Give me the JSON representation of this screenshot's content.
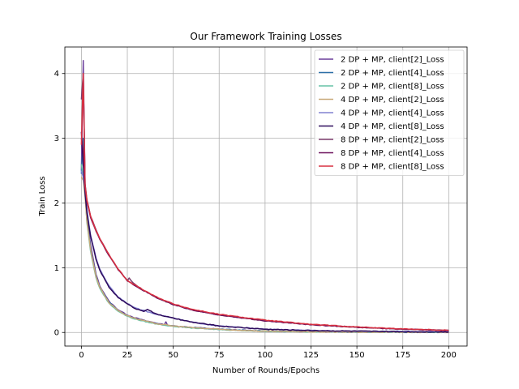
{
  "chart_data": {
    "type": "line",
    "title": "Our Framework Training Losses",
    "xlabel": "Number of Rounds/Epochs",
    "ylabel": "Train Loss",
    "xlim": [
      -9,
      210
    ],
    "ylim": [
      -0.21,
      4.41
    ],
    "xticks": [
      0,
      25,
      50,
      75,
      100,
      125,
      150,
      175,
      200
    ],
    "yticks": [
      0,
      1,
      2,
      3,
      4
    ],
    "grid": true,
    "legend_position": "top-right",
    "series": [
      {
        "name": "2 DP + MP, client[2]_Loss",
        "color": "#6a3d9a",
        "group": "fast",
        "x": [
          0,
          1,
          2,
          3,
          5,
          8,
          10,
          15,
          20,
          25,
          30,
          35,
          40,
          45,
          46,
          47,
          50,
          60,
          75,
          100,
          125,
          150,
          175,
          200
        ],
        "y": [
          2.5,
          4.2,
          2.3,
          1.8,
          1.35,
          0.9,
          0.72,
          0.48,
          0.35,
          0.27,
          0.22,
          0.18,
          0.15,
          0.12,
          0.16,
          0.11,
          0.1,
          0.08,
          0.05,
          0.02,
          0.01,
          0.005,
          0.004,
          0.003
        ]
      },
      {
        "name": "2 DP + MP, client[4]_Loss",
        "color": "#2c6fa8",
        "group": "fast",
        "x": [
          0,
          1,
          2,
          3,
          5,
          8,
          10,
          15,
          20,
          25,
          30,
          40,
          50,
          60,
          75,
          100,
          125,
          150,
          175,
          200
        ],
        "y": [
          2.45,
          3.0,
          2.2,
          1.75,
          1.3,
          0.87,
          0.7,
          0.47,
          0.34,
          0.26,
          0.21,
          0.14,
          0.1,
          0.075,
          0.05,
          0.02,
          0.01,
          0.006,
          0.004,
          0.003
        ]
      },
      {
        "name": "2 DP + MP, client[8]_Loss",
        "color": "#66c2a5",
        "group": "fast",
        "x": [
          0,
          1,
          2,
          3,
          5,
          8,
          10,
          15,
          20,
          25,
          30,
          40,
          50,
          60,
          75,
          100,
          125,
          150,
          175,
          200
        ],
        "y": [
          2.6,
          2.4,
          2.15,
          1.7,
          1.25,
          0.84,
          0.68,
          0.45,
          0.33,
          0.25,
          0.2,
          0.135,
          0.095,
          0.07,
          0.045,
          0.018,
          0.009,
          0.005,
          0.004,
          0.003
        ]
      },
      {
        "name": "4 DP + MP, client[2]_Loss",
        "color": "#c8a878",
        "group": "fast",
        "x": [
          0,
          1,
          2,
          3,
          5,
          8,
          10,
          15,
          20,
          25,
          30,
          40,
          50,
          60,
          75,
          100,
          125,
          150,
          175,
          200
        ],
        "y": [
          2.4,
          2.35,
          2.1,
          1.72,
          1.28,
          0.86,
          0.7,
          0.46,
          0.34,
          0.26,
          0.21,
          0.14,
          0.1,
          0.075,
          0.048,
          0.019,
          0.009,
          0.005,
          0.004,
          0.003
        ]
      },
      {
        "name": "4 DP + MP, client[4]_Loss",
        "color": "#8080d0",
        "group": "mid",
        "x": [
          0,
          1,
          2,
          3,
          5,
          8,
          10,
          15,
          20,
          25,
          30,
          35,
          40,
          50,
          60,
          75,
          100,
          125,
          150,
          175,
          200
        ],
        "y": [
          2.5,
          2.4,
          2.2,
          1.9,
          1.5,
          1.15,
          0.98,
          0.72,
          0.55,
          0.45,
          0.37,
          0.33,
          0.29,
          0.22,
          0.16,
          0.1,
          0.05,
          0.03,
          0.02,
          0.015,
          0.01
        ]
      },
      {
        "name": "4 DP + MP, client[8]_Loss",
        "color": "#2d0a5c",
        "group": "mid",
        "x": [
          0,
          1,
          2,
          3,
          5,
          8,
          10,
          15,
          20,
          25,
          30,
          34,
          36,
          40,
          50,
          60,
          75,
          100,
          125,
          150,
          175,
          200
        ],
        "y": [
          3.1,
          2.6,
          2.15,
          1.85,
          1.48,
          1.13,
          0.96,
          0.7,
          0.54,
          0.44,
          0.36,
          0.33,
          0.36,
          0.29,
          0.22,
          0.16,
          0.1,
          0.05,
          0.03,
          0.02,
          0.012,
          0.008
        ]
      },
      {
        "name": "8 DP + MP, client[2]_Loss",
        "color": "#7a3a6a",
        "group": "slow",
        "x": [
          0,
          1,
          2,
          3,
          5,
          8,
          10,
          15,
          20,
          25,
          26,
          27,
          30,
          40,
          50,
          60,
          75,
          100,
          125,
          150,
          175,
          200
        ],
        "y": [
          3.6,
          4.0,
          2.3,
          2.05,
          1.8,
          1.58,
          1.45,
          1.2,
          0.98,
          0.8,
          0.84,
          0.8,
          0.72,
          0.55,
          0.43,
          0.35,
          0.27,
          0.18,
          0.12,
          0.08,
          0.05,
          0.03
        ]
      },
      {
        "name": "8 DP + MP, client[4]_Loss",
        "color": "#6b0f5a",
        "group": "slow",
        "x": [
          0,
          1,
          2,
          3,
          5,
          8,
          10,
          15,
          20,
          25,
          30,
          40,
          50,
          60,
          75,
          100,
          125,
          150,
          175,
          200
        ],
        "y": [
          3.0,
          2.8,
          2.25,
          2.02,
          1.78,
          1.56,
          1.44,
          1.19,
          0.97,
          0.8,
          0.71,
          0.55,
          0.43,
          0.35,
          0.27,
          0.18,
          0.12,
          0.08,
          0.05,
          0.03
        ]
      },
      {
        "name": "8 DP + MP, client[8]_Loss",
        "color": "#d83040",
        "group": "slow",
        "x": [
          0,
          1,
          2,
          3,
          5,
          8,
          10,
          15,
          20,
          25,
          30,
          40,
          50,
          60,
          75,
          100,
          125,
          150,
          175,
          200
        ],
        "y": [
          2.9,
          4.0,
          2.28,
          2.04,
          1.8,
          1.57,
          1.45,
          1.2,
          0.98,
          0.8,
          0.72,
          0.56,
          0.44,
          0.36,
          0.28,
          0.19,
          0.125,
          0.085,
          0.055,
          0.035
        ]
      }
    ]
  }
}
